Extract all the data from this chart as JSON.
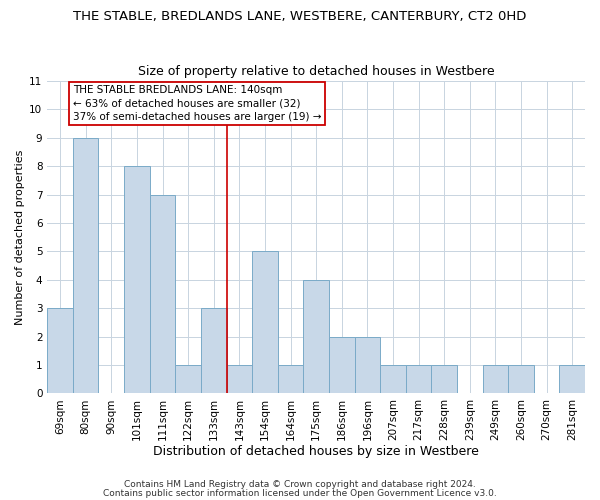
{
  "title": "THE STABLE, BREDLANDS LANE, WESTBERE, CANTERBURY, CT2 0HD",
  "subtitle": "Size of property relative to detached houses in Westbere",
  "xlabel": "Distribution of detached houses by size in Westbere",
  "ylabel": "Number of detached properties",
  "bin_labels": [
    "69sqm",
    "80sqm",
    "90sqm",
    "101sqm",
    "111sqm",
    "122sqm",
    "133sqm",
    "143sqm",
    "154sqm",
    "164sqm",
    "175sqm",
    "186sqm",
    "196sqm",
    "207sqm",
    "217sqm",
    "228sqm",
    "239sqm",
    "249sqm",
    "260sqm",
    "270sqm",
    "281sqm"
  ],
  "bar_heights": [
    3,
    9,
    0,
    8,
    7,
    1,
    3,
    1,
    5,
    1,
    4,
    2,
    2,
    1,
    1,
    1,
    0,
    1,
    1,
    0,
    1
  ],
  "bar_color": "#c8d8e8",
  "bar_edge_color": "#7aaac8",
  "vline_color": "#cc0000",
  "vline_x": 6.5,
  "annotation_line1": "THE STABLE BREDLANDS LANE: 140sqm",
  "annotation_line2": "← 63% of detached houses are smaller (32)",
  "annotation_line3": "37% of semi-detached houses are larger (19) →",
  "annotation_box_color": "#ffffff",
  "annotation_box_edge": "#cc0000",
  "ylim": [
    0,
    11
  ],
  "yticks": [
    0,
    1,
    2,
    3,
    4,
    5,
    6,
    7,
    8,
    9,
    10,
    11
  ],
  "footer1": "Contains HM Land Registry data © Crown copyright and database right 2024.",
  "footer2": "Contains public sector information licensed under the Open Government Licence v3.0.",
  "bg_color": "#ffffff",
  "grid_color": "#c8d4e0",
  "title_fontsize": 9.5,
  "subtitle_fontsize": 9,
  "xlabel_fontsize": 9,
  "ylabel_fontsize": 8,
  "tick_fontsize": 7.5,
  "annot_fontsize": 7.5,
  "footer_fontsize": 6.5
}
